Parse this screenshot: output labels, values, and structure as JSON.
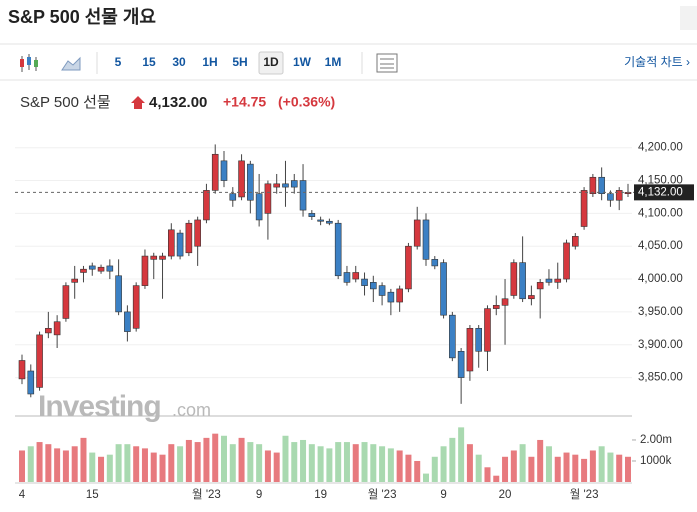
{
  "header": {
    "title": "S&P 500 선물 개요",
    "tech_chart": "기술적 차트 ›"
  },
  "toolbar": {
    "intervals": [
      {
        "label": "5",
        "selected": false
      },
      {
        "label": "15",
        "selected": false
      },
      {
        "label": "30",
        "selected": false
      },
      {
        "label": "1H",
        "selected": false
      },
      {
        "label": "5H",
        "selected": false
      },
      {
        "label": "1D",
        "selected": true
      },
      {
        "label": "1W",
        "selected": false
      },
      {
        "label": "1M",
        "selected": false
      }
    ]
  },
  "quote": {
    "name": "S&P 500 선물",
    "last": "4,132.00",
    "change": "+14.75",
    "change_pct": "(+0.36%)"
  },
  "chart_data": {
    "type": "candlestick",
    "watermark": "Investing",
    "watermark_suffix": ".com",
    "up_color": "#d5383e",
    "down_color": "#3b80c4",
    "volume_up_color": "#e77a7e",
    "volume_down_color": "#a9d9b0",
    "categories": [
      "4",
      null,
      null,
      null,
      null,
      null,
      null,
      null,
      "15",
      null,
      null,
      null,
      null,
      null,
      null,
      null,
      null,
      null,
      null,
      null,
      null,
      "월 '23",
      null,
      null,
      null,
      null,
      null,
      "9",
      null,
      null,
      null,
      null,
      null,
      null,
      "19",
      null,
      null,
      null,
      null,
      null,
      null,
      "월 '23",
      null,
      null,
      null,
      null,
      null,
      null,
      "9",
      null,
      null,
      null,
      null,
      null,
      null,
      "20",
      null,
      null,
      null,
      null,
      null,
      null,
      null,
      null,
      "월 '23",
      null,
      null,
      null,
      null,
      null
    ],
    "open": [
      3848,
      3860,
      3835,
      3918,
      3915,
      3940,
      3995,
      4010,
      4020,
      4012,
      4020,
      4005,
      3950,
      3925,
      3990,
      4030,
      4030,
      4035,
      4070,
      4040,
      4050,
      4090,
      4135,
      4180,
      4130,
      4125,
      4175,
      4130,
      4100,
      4140,
      4145,
      4150,
      4150,
      4100,
      4090,
      4088,
      4085,
      4010,
      4000,
      4000,
      3995,
      3990,
      3980,
      3965,
      3985,
      4050,
      4090,
      4030,
      4025,
      3945,
      3890,
      3860,
      3925,
      3890,
      3955,
      3960,
      3975,
      4025,
      3970,
      3985,
      4000,
      3995,
      4000,
      4050,
      4080,
      4130,
      4155,
      4130,
      4120,
      4130
    ],
    "high": [
      3885,
      3870,
      3920,
      3950,
      3945,
      3995,
      4020,
      4020,
      4025,
      4022,
      4030,
      4030,
      3960,
      3995,
      4045,
      4040,
      4040,
      4085,
      4075,
      4090,
      4095,
      4145,
      4205,
      4195,
      4140,
      4190,
      4180,
      4160,
      4150,
      4160,
      4180,
      4160,
      4175,
      4105,
      4095,
      4092,
      4090,
      4020,
      4020,
      4010,
      4005,
      3995,
      3985,
      3990,
      4055,
      4110,
      4100,
      4035,
      4030,
      3950,
      3895,
      3930,
      3930,
      3960,
      3975,
      4000,
      4030,
      4065,
      3990,
      4000,
      4015,
      4025,
      4060,
      4070,
      4140,
      4160,
      4170,
      4135,
      4140,
      4145
    ],
    "low": [
      3840,
      3820,
      3830,
      3910,
      3895,
      3935,
      3970,
      3995,
      4005,
      4008,
      4000,
      3945,
      3905,
      3920,
      3985,
      4000,
      3970,
      4030,
      4030,
      4035,
      4020,
      4085,
      4130,
      4140,
      4110,
      4120,
      4100,
      4080,
      4060,
      4130,
      4110,
      4130,
      4095,
      4090,
      4082,
      4082,
      4000,
      3990,
      3995,
      3975,
      3965,
      3960,
      3945,
      3950,
      3980,
      4045,
      4020,
      4015,
      3940,
      3875,
      3810,
      3845,
      3865,
      3860,
      3945,
      3900,
      3970,
      3965,
      3960,
      3940,
      3990,
      3985,
      3995,
      4045,
      4075,
      4125,
      4120,
      4110,
      4105,
      4125
    ],
    "close": [
      3876,
      3825,
      3915,
      3925,
      3935,
      3990,
      4000,
      4015,
      4015,
      4018,
      4012,
      3950,
      3920,
      3990,
      4035,
      4035,
      4035,
      4075,
      4035,
      4085,
      4090,
      4135,
      4190,
      4150,
      4120,
      4180,
      4120,
      4090,
      4145,
      4145,
      4140,
      4140,
      4105,
      4095,
      4088,
      4085,
      4005,
      3995,
      4010,
      3990,
      3985,
      3975,
      3965,
      3985,
      4050,
      4090,
      4030,
      4020,
      3945,
      3880,
      3850,
      3925,
      3890,
      3955,
      3960,
      3970,
      4025,
      3970,
      3975,
      3995,
      3995,
      4000,
      4055,
      4065,
      4135,
      4155,
      4130,
      4120,
      4135,
      4132
    ],
    "volume": [
      1500000,
      1700000,
      1900000,
      1800000,
      1600000,
      1500000,
      1700000,
      2100000,
      1400000,
      1200000,
      1300000,
      1800000,
      1800000,
      1700000,
      1600000,
      1400000,
      1300000,
      1800000,
      1700000,
      2000000,
      1900000,
      2100000,
      2300000,
      2200000,
      1800000,
      2100000,
      1900000,
      1800000,
      1500000,
      1400000,
      2200000,
      1900000,
      2000000,
      1800000,
      1700000,
      1600000,
      1900000,
      1900000,
      1800000,
      1900000,
      1800000,
      1700000,
      1600000,
      1500000,
      1300000,
      1000000,
      400000,
      1200000,
      1700000,
      2100000,
      2600000,
      1800000,
      1300000,
      700000,
      300000,
      1200000,
      1500000,
      1800000,
      1200000,
      2000000,
      1700000,
      1200000,
      1400000,
      1300000,
      1100000,
      1500000,
      1700000,
      1400000,
      1300000,
      1200000
    ],
    "ylim": [
      3793,
      4230
    ],
    "yticks": [
      {
        "value": 4200,
        "label": "4,200.00"
      },
      {
        "value": 4150,
        "label": "4,150.00"
      },
      {
        "value": 4100,
        "label": "4,100.00"
      },
      {
        "value": 4050,
        "label": "4,050.00"
      },
      {
        "value": 4000,
        "label": "4,000.00"
      },
      {
        "value": 3950,
        "label": "3,950.00"
      },
      {
        "value": 3900,
        "label": "3,900.00"
      },
      {
        "value": 3850,
        "label": "3,850.00"
      }
    ],
    "current": {
      "value": 4132,
      "label": "4,132.00"
    },
    "vlim": [
      0,
      2950000
    ],
    "vticks": [
      {
        "value": 2000000,
        "label": "2.00m"
      },
      {
        "value": 1000000,
        "label": "1000k"
      }
    ]
  }
}
